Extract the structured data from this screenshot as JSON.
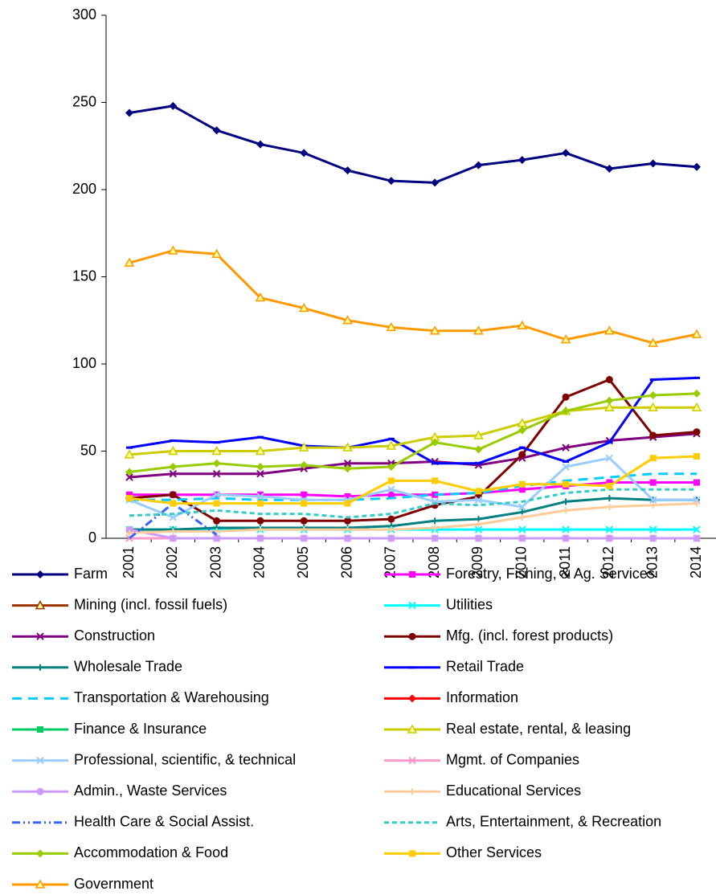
{
  "chart_data": {
    "type": "line",
    "categories": [
      "2001",
      "2002",
      "2003",
      "2004",
      "2005",
      "2006",
      "2007",
      "2008",
      "2009",
      "2010",
      "2011",
      "2012",
      "2013",
      "2014"
    ],
    "ylim": [
      0,
      300
    ],
    "yticks": [
      0,
      50,
      100,
      150,
      200,
      250,
      300
    ],
    "series": [
      {
        "name": "Farm",
        "color": "#000080",
        "marker": "diamond",
        "values": [
          244,
          248,
          234,
          226,
          221,
          211,
          205,
          204,
          214,
          217,
          221,
          212,
          215,
          213
        ]
      },
      {
        "name": "Forestry, Fishing, & Ag. Services",
        "color": "#ff00ff",
        "marker": "square",
        "values": [
          25,
          25,
          25,
          25,
          25,
          24,
          25,
          25,
          26,
          28,
          30,
          32,
          32,
          32
        ]
      },
      {
        "name": "Mining (incl. fossil fuels)",
        "color": "#993300",
        "marker": "triangle",
        "values": [
          null,
          null,
          null,
          null,
          null,
          null,
          null,
          null,
          null,
          null,
          null,
          null,
          null,
          null
        ]
      },
      {
        "name": "Utilities",
        "color": "#00ffff",
        "marker": "x",
        "values": [
          5,
          5,
          5,
          5,
          5,
          5,
          5,
          5,
          5,
          5,
          5,
          5,
          5,
          5
        ]
      },
      {
        "name": "Construction",
        "color": "#800080",
        "marker": "x",
        "values": [
          35,
          37,
          37,
          37,
          40,
          43,
          43,
          44,
          42,
          46,
          52,
          56,
          58,
          60
        ]
      },
      {
        "name": "Mfg. (incl. forest products)",
        "color": "#800000",
        "marker": "circle",
        "values": [
          23,
          25,
          10,
          10,
          10,
          10,
          11,
          19,
          24,
          48,
          81,
          91,
          59,
          61
        ]
      },
      {
        "name": "Wholesale Trade",
        "color": "#008080",
        "marker": "plus",
        "values": [
          5,
          5,
          6,
          6,
          6,
          6,
          7,
          10,
          11,
          15,
          21,
          23,
          22,
          22
        ]
      },
      {
        "name": "Retail Trade",
        "color": "#0000ff",
        "marker": "dash",
        "values": [
          52,
          56,
          55,
          58,
          53,
          52,
          57,
          43,
          43,
          52,
          44,
          55,
          91,
          92
        ]
      },
      {
        "name": "Transportation & Warehousing",
        "color": "#00ccff",
        "marker": "none",
        "dash": "12 8",
        "values": [
          22,
          22,
          23,
          22,
          22,
          22,
          23,
          25,
          26,
          30,
          33,
          35,
          37,
          37
        ]
      },
      {
        "name": "Information",
        "color": "#ff0000",
        "marker": "diamond",
        "values": [
          null,
          null,
          null,
          null,
          null,
          null,
          null,
          null,
          null,
          null,
          null,
          null,
          null,
          null
        ]
      },
      {
        "name": "Finance & Insurance",
        "color": "#00cc66",
        "marker": "square",
        "values": [
          null,
          null,
          null,
          null,
          null,
          null,
          null,
          null,
          null,
          null,
          null,
          null,
          null,
          null
        ]
      },
      {
        "name": "Real estate, rental, & leasing",
        "color": "#cccc00",
        "marker": "triangle",
        "values": [
          48,
          50,
          50,
          50,
          52,
          52,
          53,
          58,
          59,
          66,
          73,
          75,
          75,
          75
        ]
      },
      {
        "name": "Professional, scientific, & technical",
        "color": "#99ccff",
        "marker": "x",
        "values": [
          22,
          12,
          25,
          24,
          22,
          22,
          28,
          21,
          22,
          18,
          41,
          46,
          22,
          22
        ]
      },
      {
        "name": "Mgmt. of Companies",
        "color": "#ff99cc",
        "marker": "x",
        "values": [
          0,
          0,
          0,
          0,
          0,
          0,
          0,
          0,
          0,
          0,
          0,
          0,
          0,
          0
        ]
      },
      {
        "name": "Admin., Waste Services",
        "color": "#cc99ff",
        "marker": "circle",
        "values": [
          5,
          0,
          0,
          0,
          0,
          0,
          0,
          0,
          0,
          0,
          0,
          0,
          0,
          0
        ]
      },
      {
        "name": "Educational Services",
        "color": "#ffcc99",
        "marker": "plus",
        "values": [
          3,
          4,
          4,
          5,
          5,
          5,
          5,
          6,
          8,
          12,
          16,
          18,
          19,
          20
        ]
      },
      {
        "name": "Health Care & Social Assist.",
        "color": "#3366ff",
        "marker": "none",
        "dash": "10 4 2 4 2 4",
        "values": [
          0,
          20,
          2,
          null,
          null,
          null,
          null,
          null,
          null,
          null,
          null,
          null,
          null,
          null
        ]
      },
      {
        "name": "Arts, Entertainment, & Recreation",
        "color": "#33cccc",
        "marker": "none",
        "dash": "6 4",
        "values": [
          13,
          14,
          16,
          14,
          14,
          12,
          14,
          20,
          19,
          21,
          26,
          28,
          28,
          28
        ]
      },
      {
        "name": "Accommodation & Food",
        "color": "#99cc00",
        "marker": "diamond",
        "values": [
          38,
          41,
          43,
          41,
          42,
          40,
          41,
          55,
          51,
          62,
          73,
          79,
          82,
          83
        ]
      },
      {
        "name": "Other Services",
        "color": "#ffcc00",
        "marker": "square",
        "values": [
          23,
          20,
          20,
          20,
          20,
          20,
          33,
          33,
          27,
          31,
          31,
          30,
          46,
          47
        ]
      },
      {
        "name": "Government",
        "color": "#ff9900",
        "marker": "triangle",
        "values": [
          158,
          165,
          163,
          138,
          132,
          125,
          121,
          119,
          119,
          122,
          114,
          119,
          112,
          117
        ]
      }
    ]
  }
}
